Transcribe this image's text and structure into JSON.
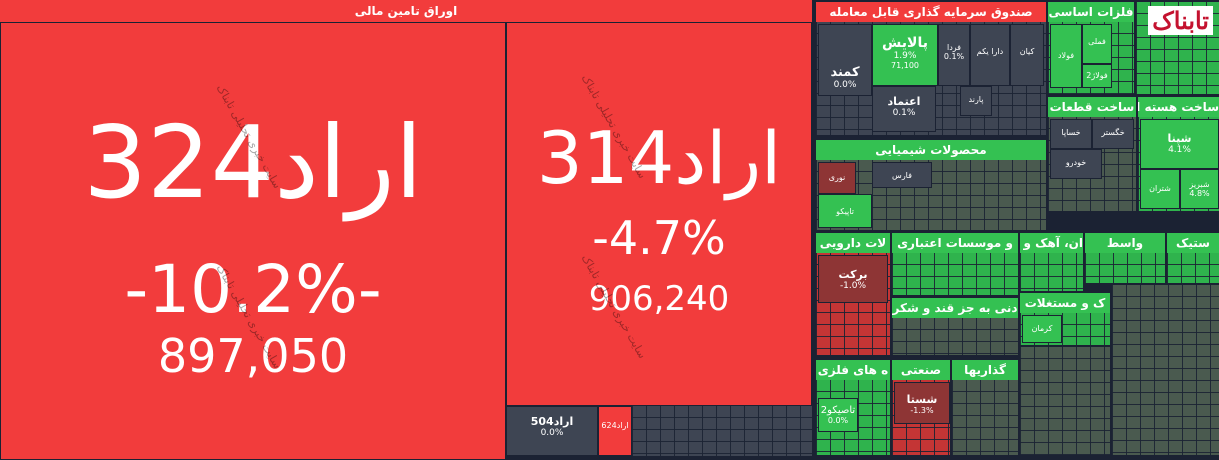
{
  "logo": "تابناک",
  "watermark": "سایت خبری تحلیلی تابناک",
  "sectors": [
    {
      "title": "اوراق تامین مالی",
      "tiles": [
        {
          "name": "اراد324",
          "change": "-10.2%-",
          "price": "897,050"
        },
        {
          "name": "اراد314",
          "change": "-4.7%",
          "price": "906,240"
        },
        {
          "name": "اراد504",
          "change": "0.0%"
        },
        {
          "name": "اراد624"
        }
      ]
    },
    {
      "title": "صندوق سرمایه گذاری قابل معامله",
      "tiles": [
        {
          "name": "پالایش",
          "change": "1.9%",
          "price": "71,100"
        },
        {
          "name": "کمند",
          "change": "0.0%"
        },
        {
          "name": "اعتماد",
          "change": "0.1%"
        },
        {
          "name": "فردا",
          "change": "0.1%"
        },
        {
          "name": "دارا یکم"
        },
        {
          "name": "کیان"
        },
        {
          "name": "پارند"
        }
      ]
    },
    {
      "title": "فلزات اساسی",
      "tiles": [
        {
          "name": "فملی"
        },
        {
          "name": "فولاد"
        },
        {
          "name": "فولاژ2"
        }
      ]
    },
    {
      "title": "محصولات شیمیایی",
      "tiles": [
        {
          "name": "نوری"
        },
        {
          "name": "فارس"
        },
        {
          "name": "تاپیکو"
        }
      ]
    },
    {
      "title": "ساخت قطعات",
      "tiles": [
        {
          "name": "خساپا"
        },
        {
          "name": "خگستر"
        },
        {
          "name": "خودرو"
        }
      ]
    },
    {
      "title": "ساخت هسته ای",
      "tiles": [
        {
          "name": "شپنا",
          "change": "4.1%"
        },
        {
          "name": "شبریز",
          "change": "4.8%"
        },
        {
          "name": "شتران"
        }
      ]
    },
    {
      "title": "لات دارویی",
      "tiles": [
        {
          "name": "برکت",
          "change": "-1.0%"
        }
      ]
    },
    {
      "title": "و موسسات اعتباری",
      "tiles": []
    },
    {
      "title": "ان، آهک و گچ",
      "tiles": []
    },
    {
      "title": "واسط",
      "tiles": []
    },
    {
      "title": "ستیک",
      "tiles": []
    },
    {
      "title": "دنی به جز قند و شکر",
      "tiles": []
    },
    {
      "title": "ک و مستغلات",
      "tiles": [
        {
          "name": "کرمان"
        }
      ]
    },
    {
      "title": "ه های فلزی",
      "tiles": [
        {
          "name": "تاصیکو2",
          "change": "0.0%"
        }
      ]
    },
    {
      "title": "صنعتی",
      "tiles": [
        {
          "name": "شستا",
          "change": "-1.3%"
        }
      ]
    },
    {
      "title": "گذاریها",
      "tiles": []
    }
  ]
}
